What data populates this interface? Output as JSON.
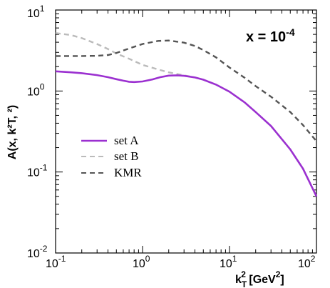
{
  "chart_data": {
    "type": "line",
    "x_scale": "log",
    "y_scale": "log",
    "xlim": [
      0.1,
      100
    ],
    "ylim": [
      0.01,
      10
    ],
    "x_ticks": [
      {
        "value": 0.1,
        "mantissa": "10",
        "exp": "-1"
      },
      {
        "value": 1,
        "mantissa": "10",
        "exp": "0"
      },
      {
        "value": 10,
        "mantissa": "10",
        "exp": "1"
      },
      {
        "value": 100,
        "mantissa": "10",
        "exp": "2"
      }
    ],
    "y_ticks": [
      {
        "value": 0.01,
        "mantissa": "10",
        "exp": "-2"
      },
      {
        "value": 0.1,
        "mantissa": "10",
        "exp": "-1"
      },
      {
        "value": 1,
        "mantissa": "10",
        "exp": "0"
      },
      {
        "value": 10,
        "mantissa": "10",
        "exp": "1"
      }
    ],
    "xlabel": {
      "pre": "k",
      "sub": "T",
      "sup": "2",
      "post": " [GeV",
      "post_sup": "2",
      "close": "]"
    },
    "ylabel": "A(x, k²T, ²)",
    "annotation": {
      "text": "x = 10",
      "sup": "-4"
    },
    "legend": {
      "position": "center-left"
    },
    "series": [
      {
        "name": "set A",
        "color": "#9b30d0",
        "dash": "solid",
        "x": [
          0.1,
          0.15,
          0.2,
          0.3,
          0.4,
          0.5,
          0.6,
          0.7,
          0.8,
          1.0,
          1.3,
          1.6,
          2.0,
          2.5,
          3.0,
          4.0,
          5.0,
          7.0,
          10,
          15,
          20,
          30,
          50,
          70,
          100
        ],
        "y": [
          1.75,
          1.7,
          1.66,
          1.57,
          1.48,
          1.4,
          1.34,
          1.3,
          1.29,
          1.31,
          1.39,
          1.48,
          1.55,
          1.56,
          1.54,
          1.47,
          1.38,
          1.2,
          0.98,
          0.72,
          0.55,
          0.37,
          0.19,
          0.11,
          0.05
        ]
      },
      {
        "name": "set B",
        "color": "#bbbbbb",
        "dash": "dashed",
        "x": [
          0.1,
          0.15,
          0.2,
          0.3,
          0.4,
          0.5,
          0.7,
          1.0,
          1.5,
          2.0,
          2.5,
          3.0,
          4.0,
          5.0,
          7.0,
          10,
          15,
          20,
          30,
          50,
          70,
          100
        ],
        "y": [
          5.2,
          4.9,
          4.5,
          3.8,
          3.3,
          2.9,
          2.5,
          2.1,
          1.85,
          1.7,
          1.62,
          1.56,
          1.47,
          1.38,
          1.2,
          0.98,
          0.72,
          0.55,
          0.37,
          0.19,
          0.11,
          0.05
        ]
      },
      {
        "name": "KMR",
        "color": "#555555",
        "dash": "dashed",
        "x": [
          0.1,
          0.15,
          0.2,
          0.3,
          0.4,
          0.5,
          0.7,
          1.0,
          1.5,
          2.0,
          3.0,
          4.0,
          5.0,
          7.0,
          10,
          15,
          20,
          30,
          50,
          70,
          100
        ],
        "y": [
          2.7,
          2.7,
          2.7,
          2.72,
          2.78,
          2.95,
          3.35,
          3.8,
          4.15,
          4.2,
          3.95,
          3.6,
          3.2,
          2.6,
          1.95,
          1.45,
          1.15,
          0.85,
          0.55,
          0.38,
          0.24
        ]
      }
    ]
  }
}
